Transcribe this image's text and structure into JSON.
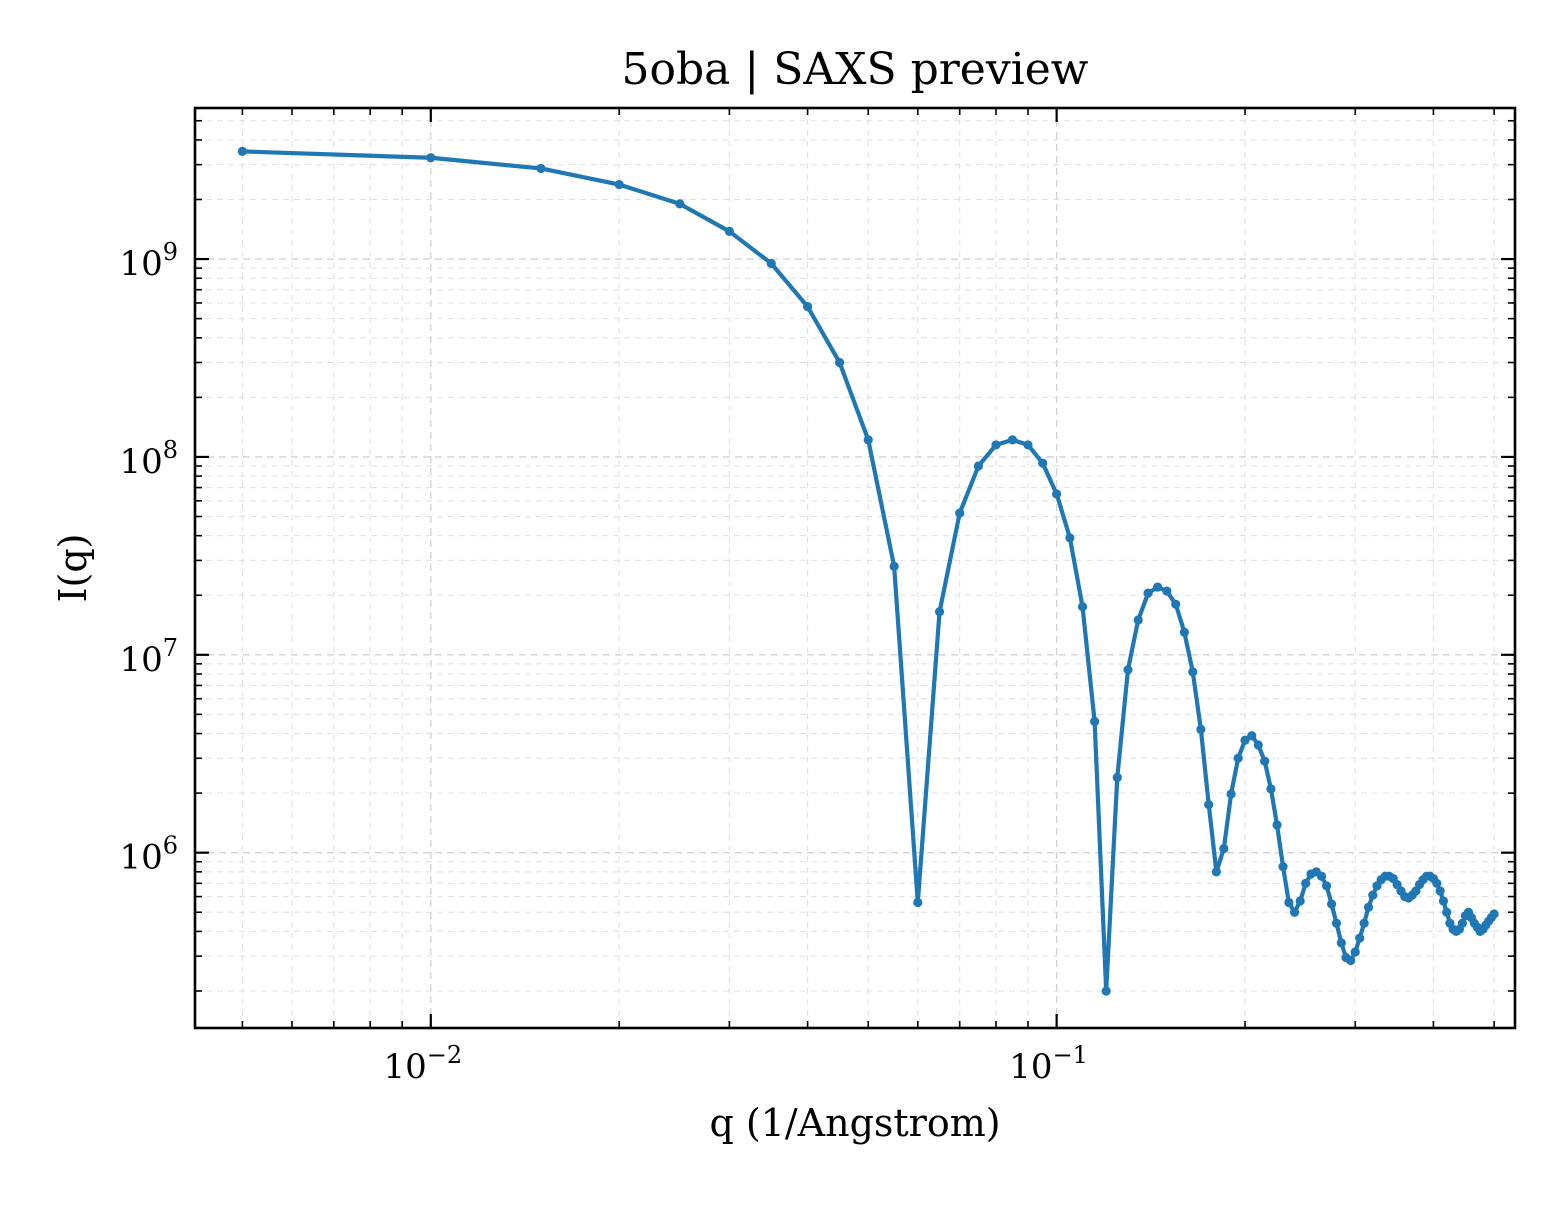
{
  "chart_data": {
    "type": "line",
    "title": "5oba | SAXS preview",
    "xlabel": "q (1/Angstrom)",
    "ylabel": "I(q)",
    "xscale": "log",
    "yscale": "log",
    "xlim": [
      0.0042,
      0.54
    ],
    "ylim": [
      130000,
      5800000000
    ],
    "grid": true,
    "line_color": "#1f77b4",
    "x_ticks": [
      {
        "base": "10",
        "exp": "−2",
        "value": 0.01
      },
      {
        "base": "10",
        "exp": "−1",
        "value": 0.1
      }
    ],
    "y_ticks": [
      {
        "base": "10",
        "exp": "6",
        "value": 1000000
      },
      {
        "base": "10",
        "exp": "7",
        "value": 10000000
      },
      {
        "base": "10",
        "exp": "8",
        "value": 100000000
      },
      {
        "base": "10",
        "exp": "9",
        "value": 1000000000
      }
    ],
    "series": [
      {
        "x": [
          0.005,
          0.01,
          0.015,
          0.02,
          0.025,
          0.03,
          0.035,
          0.04,
          0.045,
          0.05,
          0.055,
          0.06,
          0.065,
          0.07,
          0.075,
          0.08,
          0.085,
          0.09,
          0.095,
          0.1,
          0.105,
          0.11,
          0.115,
          0.12,
          0.125,
          0.13,
          0.135,
          0.14,
          0.145,
          0.15,
          0.155,
          0.16,
          0.165,
          0.17,
          0.175,
          0.18,
          0.185,
          0.19,
          0.195,
          0.2,
          0.205,
          0.21,
          0.215,
          0.22,
          0.225,
          0.23,
          0.235,
          0.24,
          0.245,
          0.25,
          0.255,
          0.26,
          0.265,
          0.27,
          0.275,
          0.28,
          0.285,
          0.29,
          0.295,
          0.3,
          0.305,
          0.31,
          0.315,
          0.32,
          0.325,
          0.33,
          0.335,
          0.34,
          0.345,
          0.35,
          0.355,
          0.36,
          0.365,
          0.37,
          0.375,
          0.38,
          0.385,
          0.39,
          0.395,
          0.4,
          0.405,
          0.41,
          0.415,
          0.42,
          0.425,
          0.43,
          0.435,
          0.44,
          0.445,
          0.45,
          0.455,
          0.46,
          0.465,
          0.47,
          0.475,
          0.48,
          0.485,
          0.49,
          0.495,
          0.5
        ],
        "y": [
          3500000000,
          3250000000,
          2870000000,
          2380000000,
          1900000000,
          1380000000,
          950000000,
          575000000,
          300000000,
          122000000,
          28000000,
          560000,
          16500000,
          52000000,
          90000000,
          115000000,
          122000000,
          115000000,
          93000000,
          65000000,
          39000000,
          17500000,
          4600000,
          200000,
          2400000,
          8400000,
          15000000,
          20500000,
          22000000,
          21000000,
          18000000,
          13000000,
          8200000,
          4200000,
          1750000,
          800000,
          1050000,
          1980000,
          3000000,
          3700000,
          3900000,
          3500000,
          2900000,
          2100000,
          1380000,
          850000,
          560000,
          500000,
          570000,
          700000,
          780000,
          800000,
          760000,
          680000,
          550000,
          440000,
          350000,
          295000,
          285000,
          315000,
          370000,
          440000,
          530000,
          610000,
          680000,
          730000,
          760000,
          760000,
          740000,
          690000,
          640000,
          600000,
          590000,
          610000,
          640000,
          690000,
          730000,
          760000,
          760000,
          740000,
          700000,
          640000,
          570000,
          500000,
          440000,
          410000,
          400000,
          410000,
          440000,
          480000,
          500000,
          470000,
          440000,
          420000,
          400000,
          410000,
          430000,
          450000,
          470000,
          490000
        ]
      }
    ]
  }
}
